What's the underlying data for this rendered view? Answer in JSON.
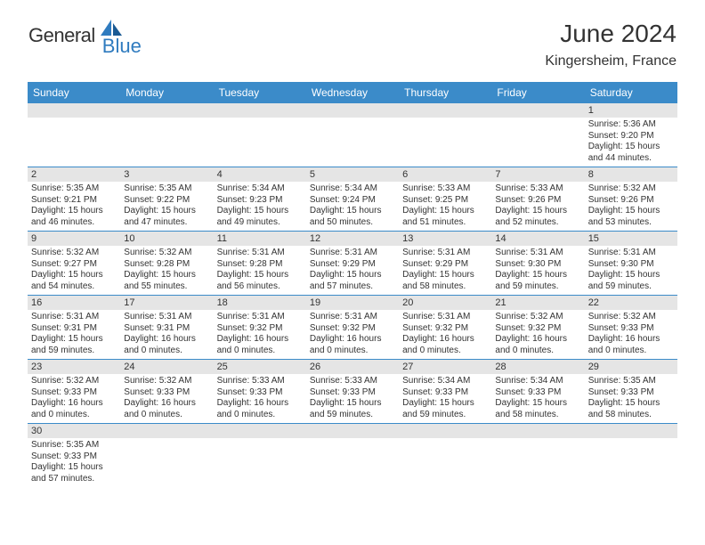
{
  "logo": {
    "general": "General",
    "blue": "Blue"
  },
  "title": "June 2024",
  "location": "Kingersheim, France",
  "colors": {
    "header_bg": "#3b8bc9",
    "header_text": "#ffffff",
    "daynum_bg": "#e5e5e5",
    "border": "#3b8bc9",
    "text": "#333333",
    "logo_blue": "#2f7bbf"
  },
  "day_headers": [
    "Sunday",
    "Monday",
    "Tuesday",
    "Wednesday",
    "Thursday",
    "Friday",
    "Saturday"
  ],
  "weeks": [
    [
      {
        "day": "",
        "sunrise": "",
        "sunset": "",
        "daylight": ""
      },
      {
        "day": "",
        "sunrise": "",
        "sunset": "",
        "daylight": ""
      },
      {
        "day": "",
        "sunrise": "",
        "sunset": "",
        "daylight": ""
      },
      {
        "day": "",
        "sunrise": "",
        "sunset": "",
        "daylight": ""
      },
      {
        "day": "",
        "sunrise": "",
        "sunset": "",
        "daylight": ""
      },
      {
        "day": "",
        "sunrise": "",
        "sunset": "",
        "daylight": ""
      },
      {
        "day": "1",
        "sunrise": "Sunrise: 5:36 AM",
        "sunset": "Sunset: 9:20 PM",
        "daylight": "Daylight: 15 hours and 44 minutes."
      }
    ],
    [
      {
        "day": "2",
        "sunrise": "Sunrise: 5:35 AM",
        "sunset": "Sunset: 9:21 PM",
        "daylight": "Daylight: 15 hours and 46 minutes."
      },
      {
        "day": "3",
        "sunrise": "Sunrise: 5:35 AM",
        "sunset": "Sunset: 9:22 PM",
        "daylight": "Daylight: 15 hours and 47 minutes."
      },
      {
        "day": "4",
        "sunrise": "Sunrise: 5:34 AM",
        "sunset": "Sunset: 9:23 PM",
        "daylight": "Daylight: 15 hours and 49 minutes."
      },
      {
        "day": "5",
        "sunrise": "Sunrise: 5:34 AM",
        "sunset": "Sunset: 9:24 PM",
        "daylight": "Daylight: 15 hours and 50 minutes."
      },
      {
        "day": "6",
        "sunrise": "Sunrise: 5:33 AM",
        "sunset": "Sunset: 9:25 PM",
        "daylight": "Daylight: 15 hours and 51 minutes."
      },
      {
        "day": "7",
        "sunrise": "Sunrise: 5:33 AM",
        "sunset": "Sunset: 9:26 PM",
        "daylight": "Daylight: 15 hours and 52 minutes."
      },
      {
        "day": "8",
        "sunrise": "Sunrise: 5:32 AM",
        "sunset": "Sunset: 9:26 PM",
        "daylight": "Daylight: 15 hours and 53 minutes."
      }
    ],
    [
      {
        "day": "9",
        "sunrise": "Sunrise: 5:32 AM",
        "sunset": "Sunset: 9:27 PM",
        "daylight": "Daylight: 15 hours and 54 minutes."
      },
      {
        "day": "10",
        "sunrise": "Sunrise: 5:32 AM",
        "sunset": "Sunset: 9:28 PM",
        "daylight": "Daylight: 15 hours and 55 minutes."
      },
      {
        "day": "11",
        "sunrise": "Sunrise: 5:31 AM",
        "sunset": "Sunset: 9:28 PM",
        "daylight": "Daylight: 15 hours and 56 minutes."
      },
      {
        "day": "12",
        "sunrise": "Sunrise: 5:31 AM",
        "sunset": "Sunset: 9:29 PM",
        "daylight": "Daylight: 15 hours and 57 minutes."
      },
      {
        "day": "13",
        "sunrise": "Sunrise: 5:31 AM",
        "sunset": "Sunset: 9:29 PM",
        "daylight": "Daylight: 15 hours and 58 minutes."
      },
      {
        "day": "14",
        "sunrise": "Sunrise: 5:31 AM",
        "sunset": "Sunset: 9:30 PM",
        "daylight": "Daylight: 15 hours and 59 minutes."
      },
      {
        "day": "15",
        "sunrise": "Sunrise: 5:31 AM",
        "sunset": "Sunset: 9:30 PM",
        "daylight": "Daylight: 15 hours and 59 minutes."
      }
    ],
    [
      {
        "day": "16",
        "sunrise": "Sunrise: 5:31 AM",
        "sunset": "Sunset: 9:31 PM",
        "daylight": "Daylight: 15 hours and 59 minutes."
      },
      {
        "day": "17",
        "sunrise": "Sunrise: 5:31 AM",
        "sunset": "Sunset: 9:31 PM",
        "daylight": "Daylight: 16 hours and 0 minutes."
      },
      {
        "day": "18",
        "sunrise": "Sunrise: 5:31 AM",
        "sunset": "Sunset: 9:32 PM",
        "daylight": "Daylight: 16 hours and 0 minutes."
      },
      {
        "day": "19",
        "sunrise": "Sunrise: 5:31 AM",
        "sunset": "Sunset: 9:32 PM",
        "daylight": "Daylight: 16 hours and 0 minutes."
      },
      {
        "day": "20",
        "sunrise": "Sunrise: 5:31 AM",
        "sunset": "Sunset: 9:32 PM",
        "daylight": "Daylight: 16 hours and 0 minutes."
      },
      {
        "day": "21",
        "sunrise": "Sunrise: 5:32 AM",
        "sunset": "Sunset: 9:32 PM",
        "daylight": "Daylight: 16 hours and 0 minutes."
      },
      {
        "day": "22",
        "sunrise": "Sunrise: 5:32 AM",
        "sunset": "Sunset: 9:33 PM",
        "daylight": "Daylight: 16 hours and 0 minutes."
      }
    ],
    [
      {
        "day": "23",
        "sunrise": "Sunrise: 5:32 AM",
        "sunset": "Sunset: 9:33 PM",
        "daylight": "Daylight: 16 hours and 0 minutes."
      },
      {
        "day": "24",
        "sunrise": "Sunrise: 5:32 AM",
        "sunset": "Sunset: 9:33 PM",
        "daylight": "Daylight: 16 hours and 0 minutes."
      },
      {
        "day": "25",
        "sunrise": "Sunrise: 5:33 AM",
        "sunset": "Sunset: 9:33 PM",
        "daylight": "Daylight: 16 hours and 0 minutes."
      },
      {
        "day": "26",
        "sunrise": "Sunrise: 5:33 AM",
        "sunset": "Sunset: 9:33 PM",
        "daylight": "Daylight: 15 hours and 59 minutes."
      },
      {
        "day": "27",
        "sunrise": "Sunrise: 5:34 AM",
        "sunset": "Sunset: 9:33 PM",
        "daylight": "Daylight: 15 hours and 59 minutes."
      },
      {
        "day": "28",
        "sunrise": "Sunrise: 5:34 AM",
        "sunset": "Sunset: 9:33 PM",
        "daylight": "Daylight: 15 hours and 58 minutes."
      },
      {
        "day": "29",
        "sunrise": "Sunrise: 5:35 AM",
        "sunset": "Sunset: 9:33 PM",
        "daylight": "Daylight: 15 hours and 58 minutes."
      }
    ],
    [
      {
        "day": "30",
        "sunrise": "Sunrise: 5:35 AM",
        "sunset": "Sunset: 9:33 PM",
        "daylight": "Daylight: 15 hours and 57 minutes."
      },
      {
        "day": "",
        "sunrise": "",
        "sunset": "",
        "daylight": ""
      },
      {
        "day": "",
        "sunrise": "",
        "sunset": "",
        "daylight": ""
      },
      {
        "day": "",
        "sunrise": "",
        "sunset": "",
        "daylight": ""
      },
      {
        "day": "",
        "sunrise": "",
        "sunset": "",
        "daylight": ""
      },
      {
        "day": "",
        "sunrise": "",
        "sunset": "",
        "daylight": ""
      },
      {
        "day": "",
        "sunrise": "",
        "sunset": "",
        "daylight": ""
      }
    ]
  ]
}
